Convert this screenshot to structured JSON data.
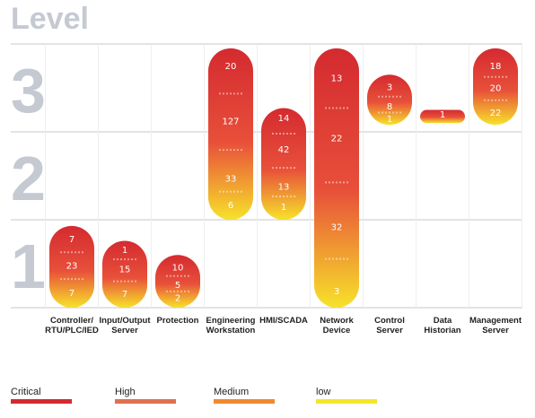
{
  "chart_data": {
    "type": "bar",
    "title": "Level",
    "levels": [
      "1",
      "2",
      "3"
    ],
    "categories": [
      [
        "Controller/",
        "RTU/PLC/IED"
      ],
      [
        "Input/Output",
        "Server"
      ],
      [
        "Protection"
      ],
      [
        "Engineering",
        "Workstation"
      ],
      [
        "HMI/SCADA"
      ],
      [
        "Network",
        "Device"
      ],
      [
        "Control",
        "Server"
      ],
      [
        "Data",
        "Historian"
      ],
      [
        "Management",
        "Server"
      ]
    ],
    "bars": [
      {
        "min_level": 1.0,
        "max_level": 1.93,
        "labels": [
          {
            "text": "7",
            "at": 1.78
          },
          {
            "text": "23",
            "at": 1.48
          },
          {
            "text": "7",
            "at": 1.17
          }
        ]
      },
      {
        "min_level": 1.0,
        "max_level": 1.76,
        "labels": [
          {
            "text": "1",
            "at": 1.66
          },
          {
            "text": "15",
            "at": 1.44
          },
          {
            "text": "7",
            "at": 1.16
          }
        ]
      },
      {
        "min_level": 1.0,
        "max_level": 1.6,
        "labels": [
          {
            "text": "10",
            "at": 1.46
          },
          {
            "text": "5",
            "at": 1.26
          },
          {
            "text": "2",
            "at": 1.11
          }
        ]
      },
      {
        "min_level": 2.0,
        "max_level": 3.95,
        "labels": [
          {
            "text": "20",
            "at": 3.75
          },
          {
            "text": "127",
            "at": 3.12
          },
          {
            "text": "33",
            "at": 2.47
          },
          {
            "text": "6",
            "at": 2.17
          }
        ]
      },
      {
        "min_level": 2.0,
        "max_level": 3.27,
        "labels": [
          {
            "text": "14",
            "at": 3.16
          },
          {
            "text": "42",
            "at": 2.8
          },
          {
            "text": "13",
            "at": 2.38
          },
          {
            "text": "1",
            "at": 2.15
          }
        ]
      },
      {
        "min_level": 1.0,
        "max_level": 3.95,
        "labels": [
          {
            "text": "13",
            "at": 3.61
          },
          {
            "text": "22",
            "at": 2.93
          },
          {
            "text": "32",
            "at": 1.92
          },
          {
            "text": "3",
            "at": 1.19
          }
        ]
      },
      {
        "min_level": 3.08,
        "max_level": 3.65,
        "labels": [
          {
            "text": "3",
            "at": 3.51
          },
          {
            "text": "8",
            "at": 3.29
          },
          {
            "text": "1",
            "at": 3.15
          }
        ]
      },
      {
        "min_level": 3.1,
        "max_level": 3.25,
        "labels": [
          {
            "text": "1",
            "at": 3.2
          }
        ]
      },
      {
        "min_level": 3.08,
        "max_level": 3.95,
        "labels": [
          {
            "text": "18",
            "at": 3.75
          },
          {
            "text": "20",
            "at": 3.5
          },
          {
            "text": "22",
            "at": 3.22
          }
        ]
      }
    ],
    "legend": [
      {
        "name": "Critical",
        "color": "#d42a30"
      },
      {
        "name": "High",
        "color": "#e0704f"
      },
      {
        "name": "Medium",
        "color": "#f0892f"
      },
      {
        "name": "low",
        "color": "#f5e52a"
      }
    ],
    "gradient": {
      "top": "#d42a30",
      "middle": "#e8503a",
      "bottom": "#f7e22a"
    },
    "grid": true,
    "legend_position": "bottom"
  }
}
